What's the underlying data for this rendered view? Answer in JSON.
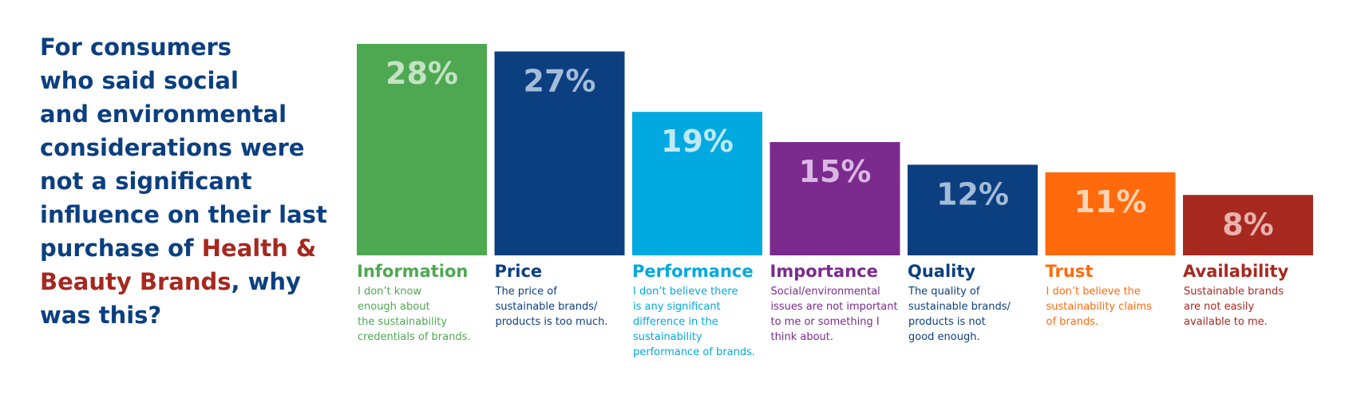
{
  "question": {
    "line1": "For consumers",
    "line2": "who said social",
    "line3": "and environmental",
    "line4": "considerations were",
    "line5": "not a significant",
    "line6": "influence on their last",
    "line7_pre": "purchase of ",
    "line7_highlight": "Health &",
    "line8_highlight": "Beauty Brands",
    "line8_post": ", why",
    "line9": "was this?"
  },
  "colors": {
    "title_blue": "#0b3f80",
    "title_highlight": "#a6281f"
  },
  "chart_data": {
    "type": "bar",
    "categories": [
      "Information",
      "Price",
      "Performance",
      "Importance",
      "Quality",
      "Trust",
      "Availability"
    ],
    "values": [
      28,
      27,
      19,
      15,
      12,
      11,
      8
    ],
    "value_labels": [
      "28%",
      "27%",
      "19%",
      "15%",
      "12%",
      "11%",
      "8%"
    ],
    "descriptions": [
      [
        "I don’t know",
        "enough about",
        "the sustainability",
        "credentials of brands."
      ],
      [
        "The price of",
        "sustainable brands/",
        "products is too much."
      ],
      [
        "I don’t believe there",
        "is any significant",
        "difference in the",
        "sustainability",
        "performance of brands."
      ],
      [
        "Social/environmental",
        "issues are not important",
        "to me or something I",
        "think about."
      ],
      [
        "The quality of",
        "sustainable brands/",
        "products is not",
        "good enough."
      ],
      [
        "I don’t believe the",
        "sustainability claims",
        "of brands."
      ],
      [
        "Sustainable brands",
        "are not easily",
        "available to me."
      ]
    ],
    "colors": [
      "#4ea852",
      "#0b3f80",
      "#00a9df",
      "#7b2a8e",
      "#0b3f80",
      "#ff6a0c",
      "#a6281f"
    ],
    "value_label_colors": [
      "#c3e3c3",
      "#a5bcd9",
      "#bfe9f8",
      "#d9b8e3",
      "#a5bcd9",
      "#ffd3b4",
      "#e8b1ac"
    ],
    "ylim": [
      0,
      28
    ],
    "grid": false,
    "legend": "none"
  }
}
